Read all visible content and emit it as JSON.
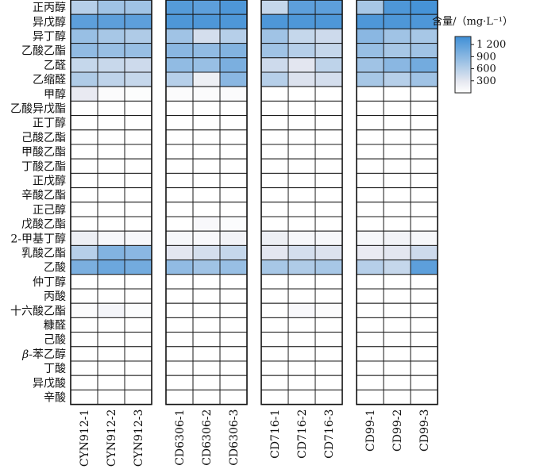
{
  "chart_data": {
    "type": "heatmap",
    "legend_title": "含量/（mg·L⁻¹）",
    "legend_ticks": [
      300,
      600,
      900,
      1200
    ],
    "legend_tick_labels": [
      "300",
      "600",
      "900",
      "1 200"
    ],
    "legend_range": [
      0,
      1400
    ],
    "colors": {
      "low": "#ffffff",
      "mid": "#e6e8f0",
      "high": "#3f8fd6"
    },
    "rows": [
      "正丙醇",
      "异戊醇",
      "异丁醇",
      "乙酸乙酯",
      "乙醛",
      "乙缩醛",
      "甲醇",
      "乙酸异戊酯",
      "正丁醇",
      "己酸乙酯",
      "甲酸乙酯",
      "丁酸乙酯",
      "正戊醇",
      "辛酸乙酯",
      "正己醇",
      "戊酸乙酯",
      "2-甲基丁醇",
      "乳酸乙酯",
      "乙酸",
      "仲丁醇",
      "丙酸",
      "十六酸乙酯",
      "糠醛",
      "己酸",
      "β-苯乙醇",
      "丁酸",
      "异戊酸",
      "辛酸"
    ],
    "groups": [
      {
        "columns": [
          "CYN912-1",
          "CYN912-2",
          "CYN912-3"
        ],
        "values": [
          [
            600,
            750,
            750
          ],
          [
            1200,
            1200,
            1200
          ],
          [
            800,
            700,
            650
          ],
          [
            850,
            800,
            800
          ],
          [
            500,
            480,
            450
          ],
          [
            650,
            550,
            500
          ],
          [
            250,
            50,
            30
          ],
          [
            0,
            0,
            0
          ],
          [
            0,
            0,
            0
          ],
          [
            0,
            0,
            0
          ],
          [
            0,
            0,
            0
          ],
          [
            0,
            0,
            0
          ],
          [
            0,
            0,
            0
          ],
          [
            0,
            0,
            0
          ],
          [
            0,
            0,
            0
          ],
          [
            0,
            0,
            0
          ],
          [
            200,
            100,
            100
          ],
          [
            600,
            950,
            900
          ],
          [
            1000,
            1100,
            1050
          ],
          [
            0,
            0,
            0
          ],
          [
            0,
            0,
            0
          ],
          [
            50,
            120,
            40
          ],
          [
            0,
            0,
            0
          ],
          [
            0,
            0,
            0
          ],
          [
            0,
            0,
            0
          ],
          [
            0,
            0,
            0
          ],
          [
            0,
            0,
            0
          ],
          [
            0,
            0,
            0
          ]
        ]
      },
      {
        "columns": [
          "CD6306-1",
          "CD6306-2",
          "CD6306-3"
        ],
        "values": [
          [
            1250,
            1200,
            1300
          ],
          [
            1300,
            1300,
            1300
          ],
          [
            750,
            400,
            600
          ],
          [
            900,
            850,
            950
          ],
          [
            850,
            800,
            1000
          ],
          [
            600,
            200,
            900
          ],
          [
            50,
            50,
            50
          ],
          [
            0,
            0,
            0
          ],
          [
            0,
            0,
            0
          ],
          [
            0,
            0,
            0
          ],
          [
            0,
            0,
            0
          ],
          [
            0,
            0,
            0
          ],
          [
            0,
            0,
            0
          ],
          [
            0,
            0,
            0
          ],
          [
            0,
            0,
            0
          ],
          [
            0,
            80,
            40
          ],
          [
            100,
            80,
            150
          ],
          [
            300,
            400,
            500
          ],
          [
            850,
            750,
            800
          ],
          [
            0,
            0,
            0
          ],
          [
            0,
            0,
            0
          ],
          [
            0,
            0,
            0
          ],
          [
            0,
            0,
            0
          ],
          [
            0,
            0,
            0
          ],
          [
            0,
            0,
            0
          ],
          [
            0,
            0,
            0
          ],
          [
            0,
            0,
            0
          ],
          [
            0,
            0,
            0
          ]
        ]
      },
      {
        "columns": [
          "CD716-1",
          "CD716-2",
          "CD716-3"
        ],
        "values": [
          [
            500,
            1200,
            1200
          ],
          [
            1300,
            1300,
            1300
          ],
          [
            750,
            500,
            450
          ],
          [
            750,
            600,
            500
          ],
          [
            450,
            300,
            550
          ],
          [
            600,
            350,
            400
          ],
          [
            0,
            0,
            0
          ],
          [
            0,
            0,
            0
          ],
          [
            0,
            0,
            0
          ],
          [
            0,
            0,
            0
          ],
          [
            0,
            0,
            0
          ],
          [
            0,
            0,
            0
          ],
          [
            0,
            0,
            0
          ],
          [
            0,
            0,
            0
          ],
          [
            0,
            0,
            0
          ],
          [
            0,
            0,
            0
          ],
          [
            200,
            100,
            100
          ],
          [
            300,
            400,
            350
          ],
          [
            700,
            650,
            700
          ],
          [
            0,
            0,
            0
          ],
          [
            0,
            0,
            0
          ],
          [
            0,
            80,
            50
          ],
          [
            0,
            0,
            0
          ],
          [
            0,
            0,
            0
          ],
          [
            0,
            0,
            0
          ],
          [
            0,
            0,
            0
          ],
          [
            0,
            0,
            0
          ],
          [
            0,
            0,
            0
          ]
        ]
      },
      {
        "columns": [
          "CD99-1",
          "CD99-2",
          "CD99-3"
        ],
        "values": [
          [
            700,
            1300,
            1350
          ],
          [
            1300,
            1300,
            1300
          ],
          [
            900,
            750,
            700
          ],
          [
            800,
            700,
            750
          ],
          [
            750,
            900,
            1050
          ],
          [
            700,
            600,
            750
          ],
          [
            0,
            0,
            0
          ],
          [
            0,
            0,
            0
          ],
          [
            0,
            0,
            0
          ],
          [
            0,
            0,
            0
          ],
          [
            0,
            0,
            0
          ],
          [
            0,
            0,
            0
          ],
          [
            0,
            0,
            0
          ],
          [
            0,
            0,
            0
          ],
          [
            0,
            0,
            0
          ],
          [
            0,
            0,
            0
          ],
          [
            100,
            150,
            100
          ],
          [
            250,
            300,
            450
          ],
          [
            600,
            500,
            1200
          ],
          [
            0,
            0,
            0
          ],
          [
            0,
            0,
            0
          ],
          [
            0,
            0,
            0
          ],
          [
            0,
            0,
            0
          ],
          [
            0,
            0,
            0
          ],
          [
            0,
            0,
            0
          ],
          [
            0,
            0,
            0
          ],
          [
            0,
            0,
            0
          ],
          [
            0,
            0,
            0
          ]
        ]
      }
    ]
  }
}
